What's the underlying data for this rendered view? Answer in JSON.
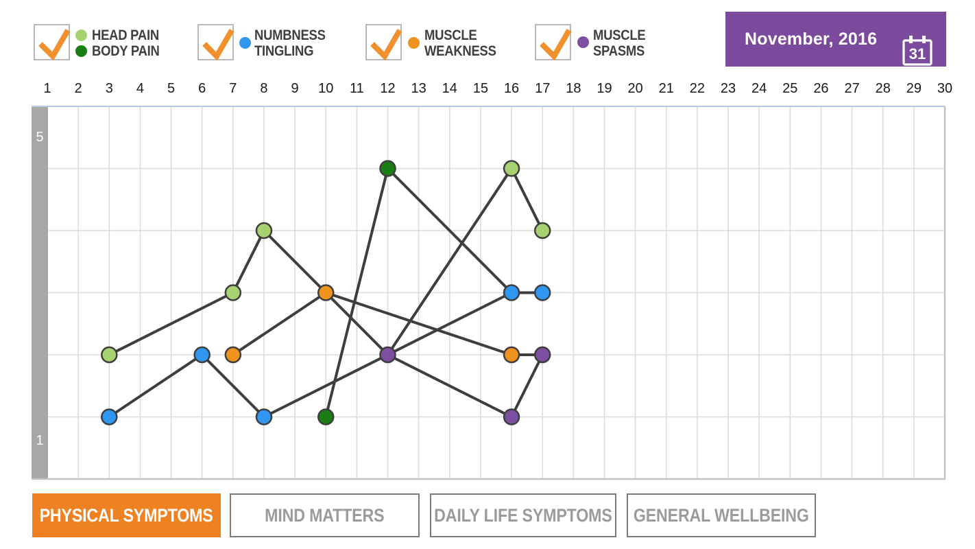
{
  "legend": {
    "groups": [
      {
        "checked": true,
        "rows": [
          {
            "label": "HEAD PAIN",
            "color": "#a8d171"
          },
          {
            "label": "BODY PAIN",
            "color": "#1b7e14"
          }
        ]
      },
      {
        "checked": true,
        "dot_color": "#2f97f2",
        "rows": [
          {
            "label": "NUMBNESS"
          },
          {
            "label": "TINGLING"
          }
        ]
      },
      {
        "checked": true,
        "dot_color": "#f0921e",
        "rows": [
          {
            "label": "MUSCLE"
          },
          {
            "label": "WEAKNESS"
          }
        ]
      },
      {
        "checked": true,
        "dot_color": "#7c4fa0",
        "rows": [
          {
            "label": "MUSCLE"
          },
          {
            "label": "SPASMS"
          }
        ]
      }
    ],
    "check_color": "#f0912d"
  },
  "date_selector": {
    "label": "November, 2016",
    "calendar_icon_day": "31",
    "background": "#7b4a9c"
  },
  "axes": {
    "y_top_label": "5",
    "y_bottom_label": "1"
  },
  "tabs": [
    {
      "label": "PHYSICAL SYMPTOMS",
      "active": true
    },
    {
      "label": "MIND MATTERS",
      "active": false
    },
    {
      "label": "DAILY LIFE SYMPTOMS",
      "active": false
    },
    {
      "label": "GENERAL WELLBEING",
      "active": false
    }
  ],
  "chart_data": {
    "type": "line",
    "title": "Physical symptoms severity by day, November 2016",
    "x_tick_labels": [
      "1",
      "2",
      "3",
      "4",
      "5",
      "6",
      "7",
      "8",
      "9",
      "10",
      "11",
      "12",
      "13",
      "14",
      "15",
      "16",
      "17",
      "18",
      "19",
      "20",
      "21",
      "22",
      "23",
      "24",
      "25",
      "26",
      "27",
      "28",
      "29",
      "30"
    ],
    "y_range": [
      1,
      5
    ],
    "y_tick_labels_visible": [
      "5",
      "1"
    ],
    "grid": true,
    "line_color": "#3e3e3e",
    "series": [
      {
        "name": "HEAD PAIN",
        "color": "#a8d171",
        "points": [
          {
            "day": 3,
            "value": 2
          },
          {
            "day": 7,
            "value": 3
          },
          {
            "day": 8,
            "value": 4
          },
          {
            "day": 16,
            "value": 5
          },
          {
            "day": 17,
            "value": 4
          }
        ]
      },
      {
        "name": "BODY PAIN",
        "color": "#1b7e14",
        "points": [
          {
            "day": 10,
            "value": 1
          },
          {
            "day": 12,
            "value": 5
          }
        ]
      },
      {
        "name": "NUMBNESS TINGLING",
        "color": "#2f97f2",
        "points": [
          {
            "day": 3,
            "value": 1
          },
          {
            "day": 6,
            "value": 2
          },
          {
            "day": 8,
            "value": 1
          },
          {
            "day": 16,
            "value": 3
          },
          {
            "day": 17,
            "value": 3
          }
        ]
      },
      {
        "name": "MUSCLE WEAKNESS",
        "color": "#f0921e",
        "points": [
          {
            "day": 7,
            "value": 2
          },
          {
            "day": 10,
            "value": 3
          },
          {
            "day": 16,
            "value": 2
          }
        ]
      },
      {
        "name": "MUSCLE SPASMS",
        "color": "#7c4fa0",
        "points": [
          {
            "day": 12,
            "value": 2
          },
          {
            "day": 16,
            "value": 1
          },
          {
            "day": 17,
            "value": 2
          }
        ]
      }
    ],
    "segments": [
      {
        "from": [
          3,
          2
        ],
        "to": [
          7,
          3
        ]
      },
      {
        "from": [
          7,
          3
        ],
        "to": [
          8,
          4
        ]
      },
      {
        "from": [
          8,
          4
        ],
        "to": [
          10,
          3
        ]
      },
      {
        "from": [
          7,
          2
        ],
        "to": [
          10,
          3
        ]
      },
      {
        "from": [
          3,
          1
        ],
        "to": [
          6,
          2
        ]
      },
      {
        "from": [
          6,
          2
        ],
        "to": [
          8,
          1
        ]
      },
      {
        "from": [
          8,
          1
        ],
        "to": [
          16,
          3
        ]
      },
      {
        "from": [
          10,
          1
        ],
        "to": [
          12,
          5
        ]
      },
      {
        "from": [
          10,
          3
        ],
        "to": [
          12,
          2
        ]
      },
      {
        "from": [
          12,
          2
        ],
        "to": [
          16,
          5
        ]
      },
      {
        "from": [
          12,
          2
        ],
        "to": [
          16,
          1
        ]
      },
      {
        "from": [
          10,
          3
        ],
        "to": [
          16,
          2
        ]
      },
      {
        "from": [
          12,
          5
        ],
        "to": [
          16,
          3
        ]
      },
      {
        "from": [
          16,
          5
        ],
        "to": [
          17,
          4
        ]
      },
      {
        "from": [
          16,
          3
        ],
        "to": [
          17,
          3
        ]
      },
      {
        "from": [
          16,
          2
        ],
        "to": [
          17,
          2
        ]
      },
      {
        "from": [
          16,
          1
        ],
        "to": [
          17,
          2
        ]
      }
    ]
  }
}
